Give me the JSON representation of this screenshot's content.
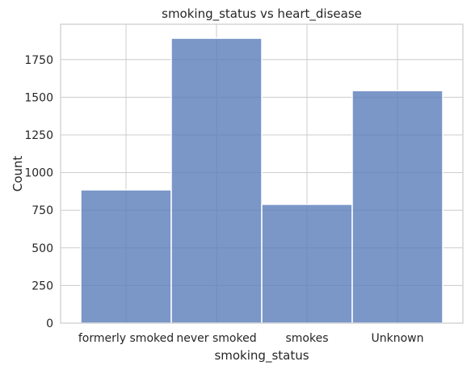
{
  "chart_data": {
    "type": "bar",
    "title": "smoking_status vs heart_disease",
    "xlabel": "smoking_status",
    "ylabel": "Count",
    "categories": [
      "formerly smoked",
      "never smoked",
      "smokes",
      "Unknown"
    ],
    "values": [
      885,
      1892,
      789,
      1544
    ],
    "ylim": [
      0,
      1985
    ],
    "yticks": [
      0,
      250,
      500,
      750,
      1000,
      1250,
      1500,
      1750
    ],
    "grid": true,
    "bar_color": "#5a7dba",
    "legend": null
  }
}
